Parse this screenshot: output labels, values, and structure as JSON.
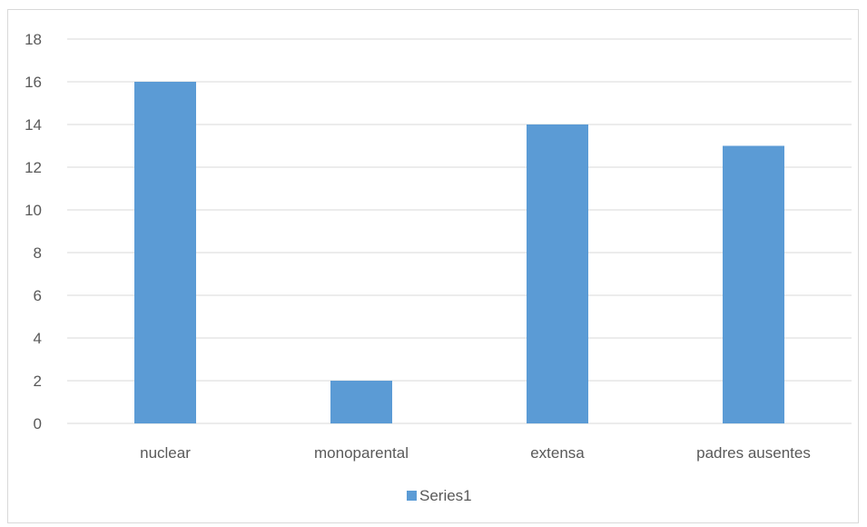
{
  "chart_data": {
    "type": "bar",
    "categories": [
      "nuclear",
      "monoparental",
      "extensa",
      "padres ausentes"
    ],
    "series": [
      {
        "name": "Series1",
        "values": [
          16,
          2,
          14,
          13
        ],
        "color": "#5b9bd5"
      }
    ],
    "ylim": [
      0,
      18
    ],
    "yticks": [
      0,
      2,
      4,
      6,
      8,
      10,
      12,
      14,
      16,
      18
    ],
    "grid": true,
    "gridColor": "#d9d9d9",
    "axisTextColor": "#595959",
    "legend": {
      "position": "bottom"
    }
  }
}
